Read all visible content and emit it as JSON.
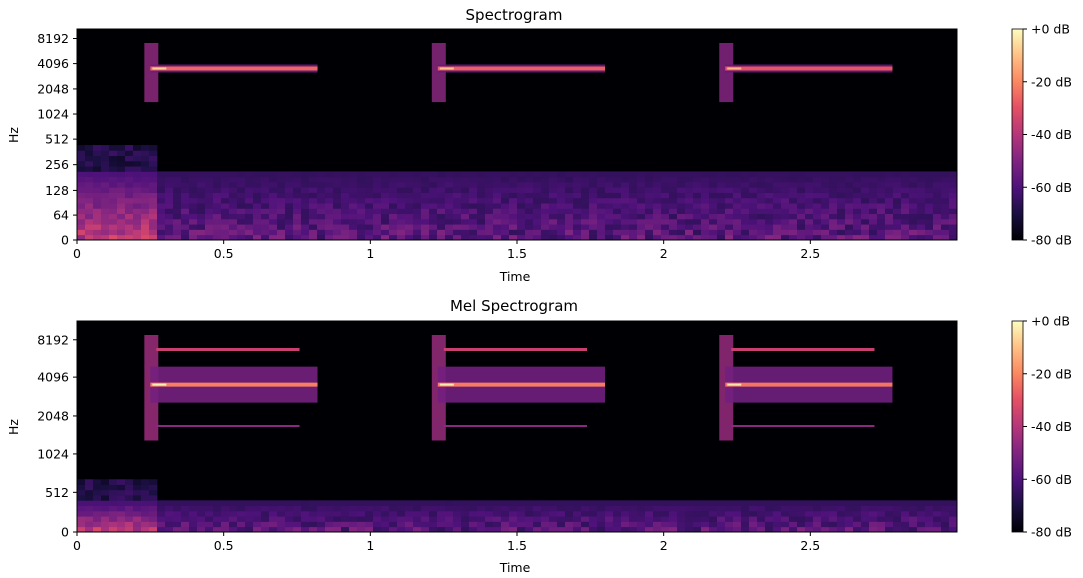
{
  "chart_data": [
    {
      "type": "heatmap",
      "title": "Spectrogram",
      "xlabel": "Time",
      "ylabel": "Hz",
      "xlim": [
        0,
        3.0
      ],
      "xticks": [
        "0",
        "0.5",
        "1",
        "1.5",
        "2",
        "2.5"
      ],
      "xtick_values": [
        0,
        0.5,
        1,
        1.5,
        2,
        2.5
      ],
      "yscale": "symlog",
      "yticks": [
        "0",
        "64",
        "128",
        "256",
        "512",
        "1024",
        "2048",
        "4096",
        "8192"
      ],
      "colormap": "magma",
      "colorbar": {
        "ticks": [
          "+0 dB",
          "-20 dB",
          "-40 dB",
          "-60 dB",
          "-80 dB"
        ],
        "range_db": [
          -80,
          0
        ]
      },
      "events": [
        {
          "onset": 0.25,
          "offset": 0.82,
          "freq_hz": 3700,
          "level_db": -8
        },
        {
          "onset": 1.23,
          "offset": 1.8,
          "freq_hz": 3700,
          "level_db": -10
        },
        {
          "onset": 2.21,
          "offset": 2.78,
          "freq_hz": 3700,
          "level_db": -12
        }
      ]
    },
    {
      "type": "heatmap",
      "title": "Mel Spectrogram",
      "xlabel": "Time",
      "ylabel": "Hz",
      "xlim": [
        0,
        3.0
      ],
      "xticks": [
        "0",
        "0.5",
        "1",
        "1.5",
        "2",
        "2.5"
      ],
      "xtick_values": [
        0,
        0.5,
        1,
        1.5,
        2,
        2.5
      ],
      "yscale": "mel",
      "yticks": [
        "0",
        "512",
        "1024",
        "2048",
        "4096",
        "8192"
      ],
      "colormap": "magma",
      "colorbar": {
        "ticks": [
          "+0 dB",
          "-20 dB",
          "-40 dB",
          "-60 dB",
          "-80 dB"
        ],
        "range_db": [
          -80,
          0
        ]
      },
      "events": [
        {
          "onset": 0.25,
          "offset": 0.82,
          "freq_hz": 3700,
          "level_db": -2
        },
        {
          "onset": 1.23,
          "offset": 1.8,
          "freq_hz": 3700,
          "level_db": -3
        },
        {
          "onset": 2.21,
          "offset": 2.78,
          "freq_hz": 3700,
          "level_db": -4
        }
      ]
    }
  ]
}
